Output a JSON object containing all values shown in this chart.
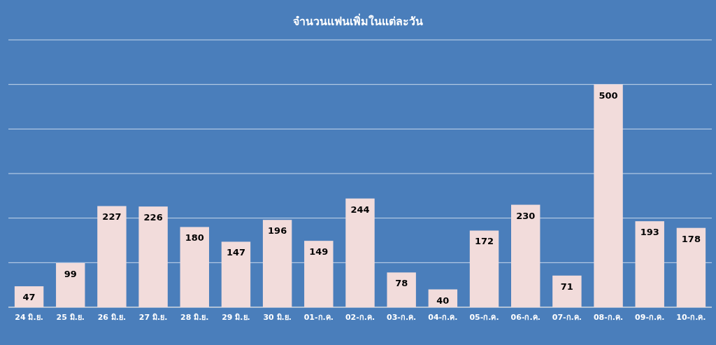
{
  "chart_data": {
    "type": "bar",
    "title": "จำนวนแฟนเพิ่มในแต่ละวัน",
    "categories": [
      "24 มิ.ย.",
      "25 มิ.ย.",
      "26 มิ.ย.",
      "27 มิ.ย.",
      "28 มิ.ย.",
      "29 มิ.ย.",
      "30 มิ.ย.",
      "01-ก.ค.",
      "02-ก.ค.",
      "03-ก.ค.",
      "04-ก.ค.",
      "05-ก.ค.",
      "06-ก.ค.",
      "07-ก.ค.",
      "08-ก.ค.",
      "09-ก.ค.",
      "10-ก.ค."
    ],
    "values": [
      47,
      99,
      227,
      226,
      180,
      147,
      196,
      149,
      244,
      78,
      40,
      172,
      230,
      71,
      500,
      193,
      178
    ],
    "color": "#f2dcdb",
    "data_labels": true,
    "ylim": [
      0,
      600
    ],
    "yticks": [
      {
        "value": 0,
        "label": null
      },
      {
        "value": 100,
        "label": null
      },
      {
        "value": 200,
        "label": null
      },
      {
        "value": 300,
        "label": null
      },
      {
        "value": 400,
        "label": null
      },
      {
        "value": 500,
        "label": null
      },
      {
        "value": 600,
        "label": null
      }
    ],
    "grid": "y",
    "tick_labels": "x"
  }
}
